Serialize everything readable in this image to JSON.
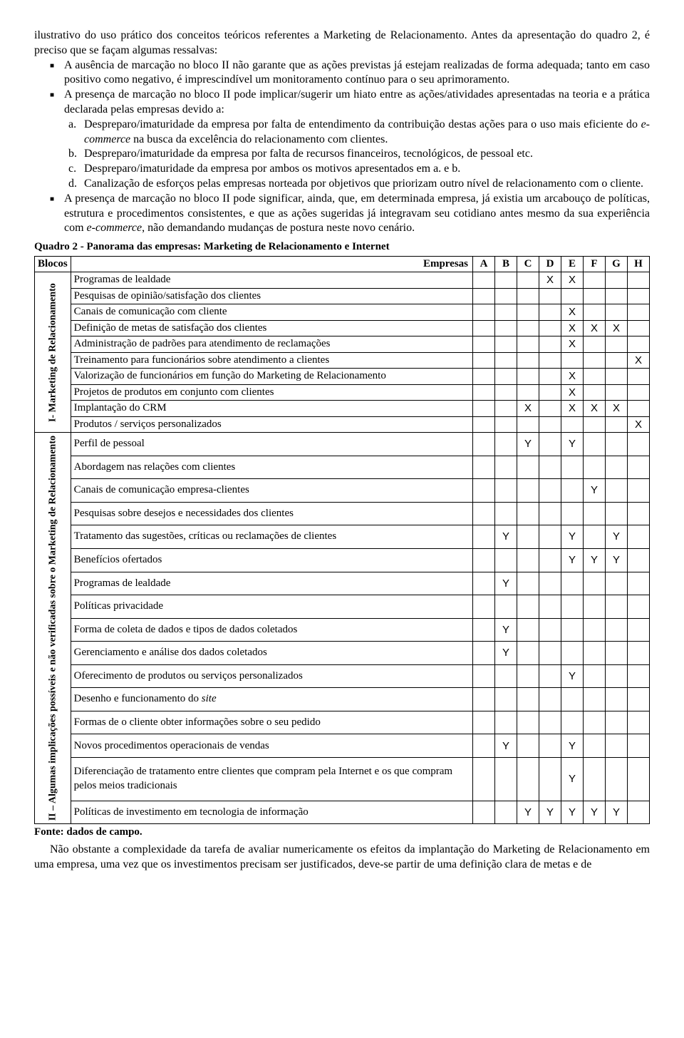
{
  "intro": "ilustrativo do uso prático dos conceitos teóricos referentes a Marketing de Relacionamento. Antes da apresentação do quadro 2, é preciso que se façam algumas ressalvas:",
  "bullets": {
    "b1": "A ausência de marcação no bloco II não garante que as ações previstas já estejam realizadas de forma adequada; tanto em caso positivo como negativo, é imprescindível um monitoramento contínuo para o seu aprimoramento.",
    "b2": "A presença de marcação no bloco II pode implicar/sugerir um hiato entre as ações/atividades apresentadas na teoria e a prática declarada pelas empresas devido a:",
    "sub_a_pre": "Despreparo/imaturidade da empresa por falta de entendimento da contribuição destas ações para o uso mais eficiente do ",
    "sub_a_em": "e-commerce",
    "sub_a_post": " na busca da excelência do relacionamento com clientes.",
    "sub_b": "Despreparo/imaturidade da empresa por falta de recursos financeiros, tecnológicos, de pessoal etc.",
    "sub_c": "Despreparo/imaturidade da empresa por ambos os motivos apresentados em a. e b.",
    "sub_d": "Canalização de esforços pelas empresas norteada por objetivos que priorizam outro nível de relacionamento com o cliente.",
    "b3_pre": "A presença de marcação no bloco II pode significar, ainda, que, em determinada empresa, já existia um arcabouço de políticas, estrutura e procedimentos consistentes, e que as ações sugeridas já integravam seu cotidiano antes mesmo da sua experiência com ",
    "b3_em": "e-commerce",
    "b3_post": ", não demandando mudanças de postura neste novo cenário."
  },
  "table": {
    "caption": "Quadro 2 - Panorama das empresas: Marketing de Relacionamento e Internet",
    "blocos_header": "Blocos",
    "empresa_header": "Empresas",
    "cols": [
      "A",
      "B",
      "C",
      "D",
      "E",
      "F",
      "G",
      "H"
    ],
    "block1_label": "I- Marketing de Relacionamento",
    "block2_label": "II – Algumas implicações possíveis e não verificadas sobre o Marketing de Relacionamento",
    "mark1": "X",
    "mark2": "Y",
    "rows1": [
      {
        "label": "Programas de lealdade",
        "m": [
          "",
          "",
          "",
          "X",
          "X",
          "",
          "",
          ""
        ]
      },
      {
        "label": "Pesquisas de opinião/satisfação dos clientes",
        "m": [
          "",
          "",
          "",
          "",
          "",
          "",
          "",
          ""
        ]
      },
      {
        "label": "Canais de comunicação com cliente",
        "m": [
          "",
          "",
          "",
          "",
          "X",
          "",
          "",
          ""
        ]
      },
      {
        "label": "Definição de metas de satisfação dos clientes",
        "m": [
          "",
          "",
          "",
          "",
          "X",
          "X",
          "X",
          ""
        ]
      },
      {
        "label": "Administração de padrões para atendimento de reclamações",
        "m": [
          "",
          "",
          "",
          "",
          "X",
          "",
          "",
          ""
        ]
      },
      {
        "label": "Treinamento para funcionários sobre atendimento a clientes",
        "m": [
          "",
          "",
          "",
          "",
          "",
          "",
          "",
          "X"
        ]
      },
      {
        "label": "Valorização de funcionários em função do Marketing de Relacionamento",
        "m": [
          "",
          "",
          "",
          "",
          "X",
          "",
          "",
          ""
        ]
      },
      {
        "label": "Projetos de produtos em conjunto com clientes",
        "m": [
          "",
          "",
          "",
          "",
          "X",
          "",
          "",
          ""
        ]
      },
      {
        "label": "Implantação do CRM",
        "m": [
          "",
          "",
          "X",
          "",
          "X",
          "X",
          "X",
          ""
        ]
      },
      {
        "label": "Produtos / serviços personalizados",
        "m": [
          "",
          "",
          "",
          "",
          "",
          "",
          "",
          "X"
        ]
      }
    ],
    "rows2": [
      {
        "label": "Perfil de pessoal",
        "m": [
          "",
          "",
          "Y",
          "",
          "Y",
          "",
          "",
          ""
        ]
      },
      {
        "label": "Abordagem nas relações com clientes",
        "m": [
          "",
          "",
          "",
          "",
          "",
          "",
          "",
          ""
        ]
      },
      {
        "label": "Canais de comunicação empresa-clientes",
        "m": [
          "",
          "",
          "",
          "",
          "",
          "Y",
          "",
          ""
        ]
      },
      {
        "label": "Pesquisas sobre desejos e necessidades dos clientes",
        "m": [
          "",
          "",
          "",
          "",
          "",
          "",
          "",
          ""
        ]
      },
      {
        "label": "Tratamento das sugestões, críticas ou reclamações de clientes",
        "m": [
          "",
          "Y",
          "",
          "",
          "Y",
          "",
          "Y",
          ""
        ]
      },
      {
        "label": "Benefícios ofertados",
        "m": [
          "",
          "",
          "",
          "",
          "Y",
          "Y",
          "Y",
          ""
        ]
      },
      {
        "label": "Programas de lealdade",
        "m": [
          "",
          "Y",
          "",
          "",
          "",
          "",
          "",
          ""
        ]
      },
      {
        "label": "Políticas privacidade",
        "m": [
          "",
          "",
          "",
          "",
          "",
          "",
          "",
          ""
        ]
      },
      {
        "label": "Forma de coleta de dados e tipos de dados coletados",
        "m": [
          "",
          "Y",
          "",
          "",
          "",
          "",
          "",
          ""
        ]
      },
      {
        "label": "Gerenciamento e análise dos dados coletados",
        "m": [
          "",
          "Y",
          "",
          "",
          "",
          "",
          "",
          ""
        ]
      },
      {
        "label": "Oferecimento de produtos ou serviços personalizados",
        "m": [
          "",
          "",
          "",
          "",
          "Y",
          "",
          "",
          ""
        ]
      },
      {
        "label": "Desenho e funcionamento do site",
        "italic": "site",
        "m": [
          "",
          "",
          "",
          "",
          "",
          "",
          "",
          ""
        ]
      },
      {
        "label": "Formas de o cliente obter informações sobre o seu pedido",
        "m": [
          "",
          "",
          "",
          "",
          "",
          "",
          "",
          ""
        ]
      },
      {
        "label": "Novos procedimentos operacionais de vendas",
        "m": [
          "",
          "Y",
          "",
          "",
          "Y",
          "",
          "",
          ""
        ]
      },
      {
        "label": "Diferenciação de tratamento entre clientes que compram pela Internet e os que compram pelos meios tradicionais",
        "m": [
          "",
          "",
          "",
          "",
          "Y",
          "",
          "",
          ""
        ]
      },
      {
        "label": "Políticas de investimento em tecnologia de informação",
        "m": [
          "",
          "",
          "Y",
          "Y",
          "Y",
          "Y",
          "Y",
          ""
        ]
      }
    ]
  },
  "source": "Fonte: dados de campo.",
  "closing": "Não obstante a complexidade da tarefa de avaliar numericamente os efeitos da implantação do Marketing de Relacionamento em uma empresa, uma vez que os investimentos precisam ser justificados, deve-se partir de uma definição clara de metas e de"
}
